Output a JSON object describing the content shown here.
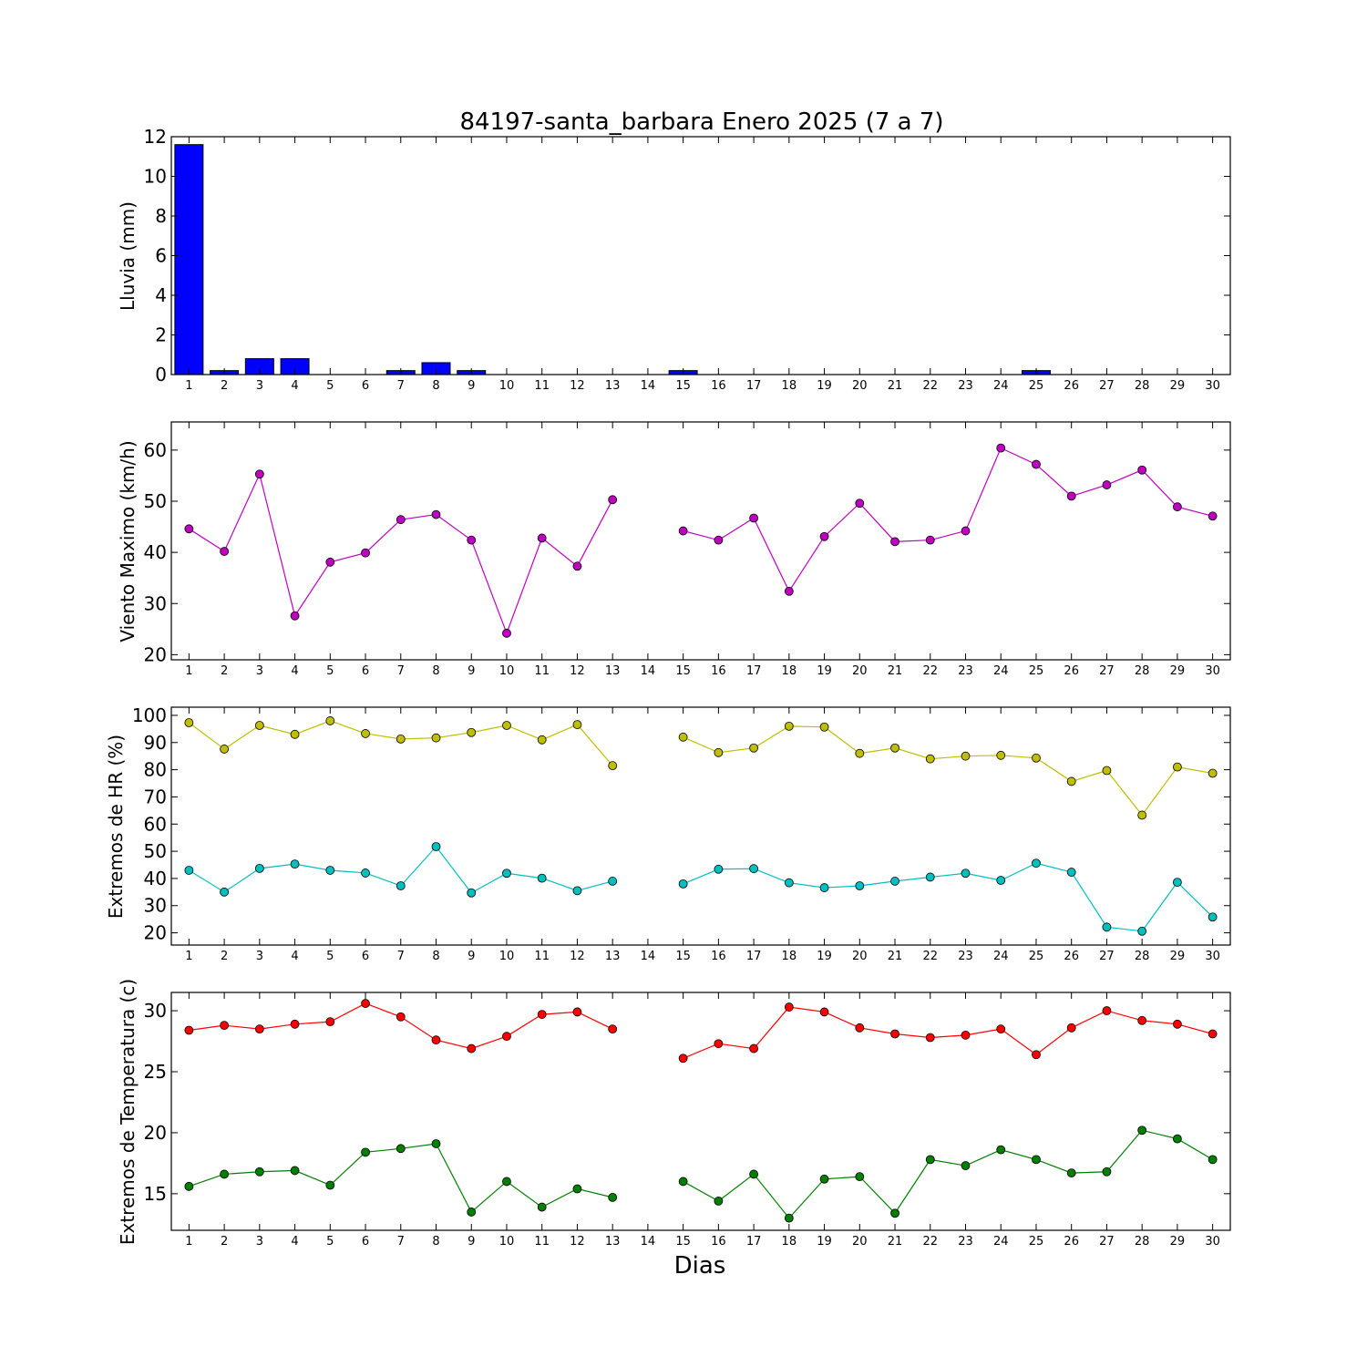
{
  "figure": {
    "title": "84197-santa_barbara Enero 2025  (7 a 7)",
    "xlabel": "Dias"
  },
  "chart_data": [
    {
      "type": "bar",
      "id": "lluvia",
      "ylabel": "Lluvia (mm)",
      "ylim": [
        0,
        12
      ],
      "yticks": [
        0,
        2,
        4,
        6,
        8,
        10,
        12
      ],
      "xlim": [
        0.5,
        30.5
      ],
      "xticks": [
        1,
        2,
        3,
        4,
        5,
        6,
        7,
        8,
        9,
        10,
        11,
        12,
        13,
        14,
        15,
        16,
        17,
        18,
        19,
        20,
        21,
        22,
        23,
        24,
        25,
        26,
        27,
        28,
        29,
        30
      ],
      "categories": [
        1,
        2,
        3,
        4,
        5,
        6,
        7,
        8,
        9,
        10,
        11,
        12,
        13,
        14,
        15,
        16,
        17,
        18,
        19,
        20,
        21,
        22,
        23,
        24,
        25,
        26,
        27,
        28,
        29,
        30
      ],
      "series": [
        {
          "color": "#0000ff",
          "values": [
            11.6,
            0.2,
            0.8,
            0.8,
            0,
            0,
            0.2,
            0.6,
            0.2,
            0,
            0,
            0,
            0,
            0,
            0.2,
            0,
            0,
            0,
            0,
            0,
            0,
            0,
            0,
            0,
            0.2,
            0,
            0,
            0,
            0,
            0
          ]
        }
      ]
    },
    {
      "type": "line",
      "id": "viento",
      "ylabel": "Viento Maximo (km/h)",
      "ylim": [
        19,
        65.5
      ],
      "yticks": [
        20,
        30,
        40,
        50,
        60
      ],
      "xlim": [
        0.5,
        30.5
      ],
      "xticks": [
        1,
        2,
        3,
        4,
        5,
        6,
        7,
        8,
        9,
        10,
        11,
        12,
        13,
        14,
        15,
        16,
        17,
        18,
        19,
        20,
        21,
        22,
        23,
        24,
        25,
        26,
        27,
        28,
        29,
        30
      ],
      "x": [
        1,
        2,
        3,
        4,
        5,
        6,
        7,
        8,
        9,
        10,
        11,
        12,
        13,
        14,
        15,
        16,
        17,
        18,
        19,
        20,
        21,
        22,
        23,
        24,
        25,
        26,
        27,
        28,
        29,
        30
      ],
      "series": [
        {
          "color": "#bf00bf",
          "values": [
            44.6,
            40.2,
            55.3,
            27.6,
            38.1,
            39.9,
            46.4,
            47.4,
            42.4,
            24.2,
            42.8,
            37.3,
            50.3,
            null,
            44.2,
            42.4,
            46.7,
            32.4,
            43.1,
            49.6,
            42.1,
            42.4,
            44.2,
            60.4,
            57.2,
            51.0,
            53.2,
            56.1,
            48.9,
            47.1
          ]
        }
      ]
    },
    {
      "type": "line",
      "id": "humedad",
      "ylabel": "Extremos de HR (%)",
      "ylim": [
        15.5,
        103
      ],
      "yticks": [
        20,
        30,
        40,
        50,
        60,
        70,
        80,
        90,
        100
      ],
      "xlim": [
        0.5,
        30.5
      ],
      "xticks": [
        1,
        2,
        3,
        4,
        5,
        6,
        7,
        8,
        9,
        10,
        11,
        12,
        13,
        14,
        15,
        16,
        17,
        18,
        19,
        20,
        21,
        22,
        23,
        24,
        25,
        26,
        27,
        28,
        29,
        30
      ],
      "x": [
        1,
        2,
        3,
        4,
        5,
        6,
        7,
        8,
        9,
        10,
        11,
        12,
        13,
        14,
        15,
        16,
        17,
        18,
        19,
        20,
        21,
        22,
        23,
        24,
        25,
        26,
        27,
        28,
        29,
        30
      ],
      "series": [
        {
          "color": "#bfbf00",
          "values": [
            97.3,
            87.6,
            96.3,
            93.0,
            98.0,
            93.3,
            91.3,
            91.7,
            93.7,
            96.3,
            91.0,
            96.6,
            81.5,
            null,
            92.0,
            86.3,
            88.0,
            96.0,
            95.7,
            86.0,
            88.0,
            84.0,
            85.0,
            85.3,
            84.3,
            75.7,
            79.7,
            63.3,
            81.0,
            78.7
          ]
        },
        {
          "color": "#00bfbf",
          "values": [
            43.0,
            35.0,
            43.7,
            45.3,
            43.0,
            42.0,
            37.3,
            51.7,
            34.7,
            41.9,
            40.1,
            35.5,
            39.0,
            null,
            38.0,
            43.4,
            43.6,
            38.4,
            36.6,
            37.3,
            39.0,
            40.5,
            41.9,
            39.3,
            45.6,
            42.3,
            22.1,
            20.6,
            38.6,
            25.8
          ]
        }
      ]
    },
    {
      "type": "line",
      "id": "temperatura",
      "ylabel": "Extremos de Temperatura (c)",
      "ylim": [
        12,
        31.5
      ],
      "yticks": [
        15,
        20,
        25,
        30
      ],
      "xlim": [
        0.5,
        30.5
      ],
      "xticks": [
        1,
        2,
        3,
        4,
        5,
        6,
        7,
        8,
        9,
        10,
        11,
        12,
        13,
        14,
        15,
        16,
        17,
        18,
        19,
        20,
        21,
        22,
        23,
        24,
        25,
        26,
        27,
        28,
        29,
        30
      ],
      "x": [
        1,
        2,
        3,
        4,
        5,
        6,
        7,
        8,
        9,
        10,
        11,
        12,
        13,
        14,
        15,
        16,
        17,
        18,
        19,
        20,
        21,
        22,
        23,
        24,
        25,
        26,
        27,
        28,
        29,
        30
      ],
      "series": [
        {
          "color": "#ff0000",
          "values": [
            28.4,
            28.8,
            28.5,
            28.9,
            29.1,
            30.6,
            29.5,
            27.6,
            26.9,
            27.9,
            29.7,
            29.9,
            28.5,
            null,
            26.1,
            27.3,
            26.9,
            30.3,
            29.9,
            28.6,
            28.1,
            27.8,
            28.0,
            28.5,
            26.4,
            28.6,
            30.0,
            29.2,
            28.9,
            28.1
          ]
        },
        {
          "color": "#007f00",
          "values": [
            15.6,
            16.6,
            16.8,
            16.9,
            15.7,
            18.4,
            18.7,
            19.1,
            13.5,
            16.0,
            13.9,
            15.4,
            14.7,
            null,
            16.0,
            14.4,
            16.6,
            13.0,
            16.2,
            16.4,
            13.4,
            17.8,
            17.3,
            18.6,
            17.8,
            16.7,
            16.8,
            20.2,
            19.5,
            17.8
          ]
        }
      ]
    }
  ]
}
